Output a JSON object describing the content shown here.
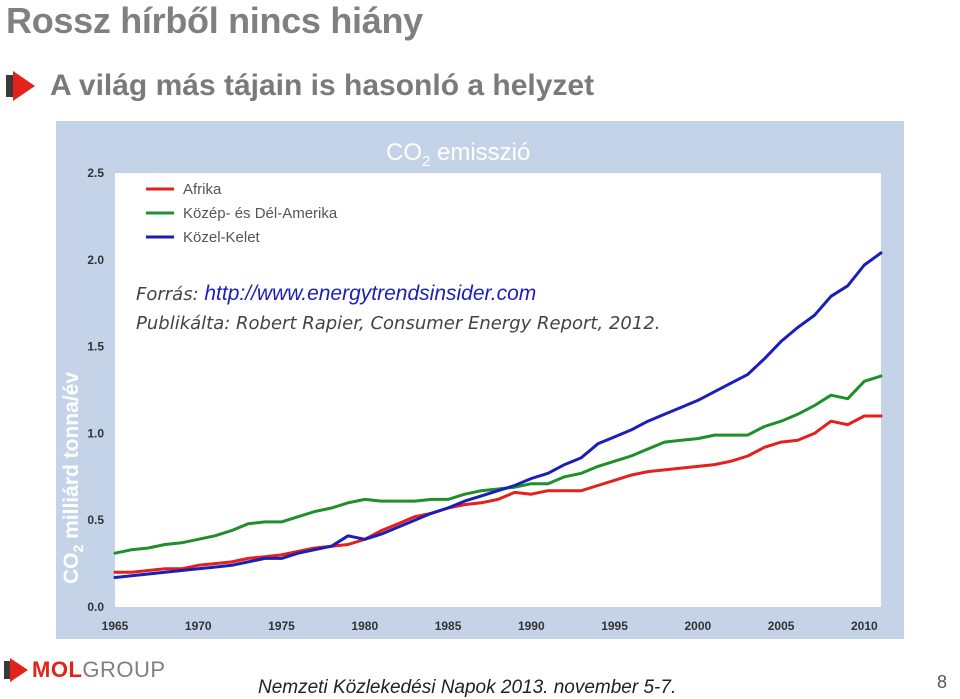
{
  "slide": {
    "title": "Rossz hírből nincs hiány",
    "subtitle": "A világ más tájain is hasonló a helyzet",
    "bullet_icon": "red-arrow-bullet-icon",
    "footer_logo_mol": "MOL",
    "footer_logo_group": "GROUP",
    "footer_text": "Nemzeti Közlekedési Napok 2013. november 5-7.",
    "page_number": "8"
  },
  "chart_data": {
    "type": "line",
    "title_main": "CO",
    "title_sub": "2",
    "title_rest": " emisszió",
    "ylabel_main": "CO",
    "ylabel_sub": "2",
    "ylabel_rest": " milliárd tonna/év",
    "ylim": [
      0,
      2.5
    ],
    "xlim": [
      1965,
      2011
    ],
    "y_ticks": [
      "0.0",
      "0.5",
      "1.0",
      "1.5",
      "2.0",
      "2.5"
    ],
    "x_ticks": [
      "1965",
      "1970",
      "1975",
      "1980",
      "1985",
      "1990",
      "1995",
      "2000",
      "2005",
      "2010"
    ],
    "grid": false,
    "legend_position": "top-left",
    "source_label": "Forrás: ",
    "source_url": "http://www.energytrendsinsider.com",
    "published": "Publikálta: Robert Rapier, Consumer Energy Report, 2012.",
    "x": [
      1965,
      1966,
      1967,
      1968,
      1969,
      1970,
      1971,
      1972,
      1973,
      1974,
      1975,
      1976,
      1977,
      1978,
      1979,
      1980,
      1981,
      1982,
      1983,
      1984,
      1985,
      1986,
      1987,
      1988,
      1989,
      1990,
      1991,
      1992,
      1993,
      1994,
      1995,
      1996,
      1997,
      1998,
      1999,
      2000,
      2001,
      2002,
      2003,
      2004,
      2005,
      2006,
      2007,
      2008,
      2009,
      2010,
      2011
    ],
    "series": [
      {
        "name": "Afrika",
        "color": "#e3201c",
        "values": [
          0.2,
          0.2,
          0.21,
          0.22,
          0.22,
          0.24,
          0.25,
          0.26,
          0.28,
          0.29,
          0.3,
          0.32,
          0.34,
          0.35,
          0.36,
          0.39,
          0.44,
          0.48,
          0.52,
          0.54,
          0.57,
          0.59,
          0.6,
          0.62,
          0.66,
          0.65,
          0.67,
          0.67,
          0.67,
          0.7,
          0.73,
          0.76,
          0.78,
          0.79,
          0.8,
          0.81,
          0.82,
          0.84,
          0.87,
          0.92,
          0.95,
          0.96,
          1.0,
          1.07,
          1.05,
          1.1,
          1.1
        ]
      },
      {
        "name": "Közép- és Dél-Amerika",
        "color": "#1f8f2c",
        "values": [
          0.31,
          0.33,
          0.34,
          0.36,
          0.37,
          0.39,
          0.41,
          0.44,
          0.48,
          0.49,
          0.49,
          0.52,
          0.55,
          0.57,
          0.6,
          0.62,
          0.61,
          0.61,
          0.61,
          0.62,
          0.62,
          0.65,
          0.67,
          0.68,
          0.69,
          0.71,
          0.71,
          0.75,
          0.77,
          0.81,
          0.84,
          0.87,
          0.91,
          0.95,
          0.96,
          0.97,
          0.99,
          0.99,
          0.99,
          1.04,
          1.07,
          1.11,
          1.16,
          1.22,
          1.2,
          1.3,
          1.33
        ]
      },
      {
        "name": "Közel-Kelet",
        "color": "#1a1fb8",
        "values": [
          0.17,
          0.18,
          0.19,
          0.2,
          0.21,
          0.22,
          0.23,
          0.24,
          0.26,
          0.28,
          0.28,
          0.31,
          0.33,
          0.35,
          0.41,
          0.39,
          0.42,
          0.46,
          0.5,
          0.54,
          0.57,
          0.61,
          0.64,
          0.67,
          0.7,
          0.74,
          0.77,
          0.82,
          0.86,
          0.94,
          0.98,
          1.02,
          1.07,
          1.11,
          1.15,
          1.19,
          1.24,
          1.29,
          1.34,
          1.43,
          1.53,
          1.61,
          1.68,
          1.79,
          1.85,
          1.97,
          2.04
        ]
      }
    ]
  }
}
